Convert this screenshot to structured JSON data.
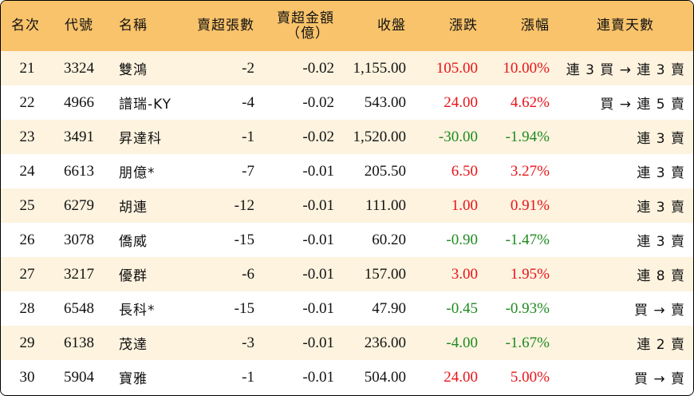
{
  "headers": {
    "rank": "名次",
    "code": "代號",
    "name": "名稱",
    "net_lots": "賣超張數",
    "net_amount_line1": "賣超金額",
    "net_amount_line2": "（億）",
    "close": "收盤",
    "change": "漲跌",
    "pct": "漲幅",
    "streak": "連賣天數"
  },
  "rows": [
    {
      "rank": "21",
      "code": "3324",
      "name": "雙鴻",
      "lots": "-2",
      "amount": "-0.02",
      "close": "1,155.00",
      "change": "105.00",
      "pct": "10.00%",
      "streak": "連 3 買 → 連 3 賣",
      "dir": "up"
    },
    {
      "rank": "22",
      "code": "4966",
      "name": "譜瑞-KY",
      "lots": "-4",
      "amount": "-0.02",
      "close": "543.00",
      "change": "24.00",
      "pct": "4.62%",
      "streak": "買 → 連 5 賣",
      "dir": "up"
    },
    {
      "rank": "23",
      "code": "3491",
      "name": "昇達科",
      "lots": "-1",
      "amount": "-0.02",
      "close": "1,520.00",
      "change": "-30.00",
      "pct": "-1.94%",
      "streak": "連 3 賣",
      "dir": "down"
    },
    {
      "rank": "24",
      "code": "6613",
      "name": "朋億*",
      "lots": "-7",
      "amount": "-0.01",
      "close": "205.50",
      "change": "6.50",
      "pct": "3.27%",
      "streak": "連 3 賣",
      "dir": "up"
    },
    {
      "rank": "25",
      "code": "6279",
      "name": "胡連",
      "lots": "-12",
      "amount": "-0.01",
      "close": "111.00",
      "change": "1.00",
      "pct": "0.91%",
      "streak": "連 3 賣",
      "dir": "up"
    },
    {
      "rank": "26",
      "code": "3078",
      "name": "僑威",
      "lots": "-15",
      "amount": "-0.01",
      "close": "60.20",
      "change": "-0.90",
      "pct": "-1.47%",
      "streak": "連 3 賣",
      "dir": "down"
    },
    {
      "rank": "27",
      "code": "3217",
      "name": "優群",
      "lots": "-6",
      "amount": "-0.01",
      "close": "157.00",
      "change": "3.00",
      "pct": "1.95%",
      "streak": "連 8 賣",
      "dir": "up"
    },
    {
      "rank": "28",
      "code": "6548",
      "name": "長科*",
      "lots": "-15",
      "amount": "-0.01",
      "close": "47.90",
      "change": "-0.45",
      "pct": "-0.93%",
      "streak": "買 → 賣",
      "dir": "down"
    },
    {
      "rank": "29",
      "code": "6138",
      "name": "茂達",
      "lots": "-3",
      "amount": "-0.01",
      "close": "236.00",
      "change": "-4.00",
      "pct": "-1.67%",
      "streak": "連 2 賣",
      "dir": "down"
    },
    {
      "rank": "30",
      "code": "5904",
      "name": "寶雅",
      "lots": "-1",
      "amount": "-0.01",
      "close": "504.00",
      "change": "24.00",
      "pct": "5.00%",
      "streak": "買 → 賣",
      "dir": "up"
    }
  ],
  "colors": {
    "header_bg": "#f9c36b",
    "odd_row_bg": "#fdf3df",
    "even_row_bg": "#ffffff",
    "up": "#e8141a",
    "down": "#1f8a1f"
  }
}
